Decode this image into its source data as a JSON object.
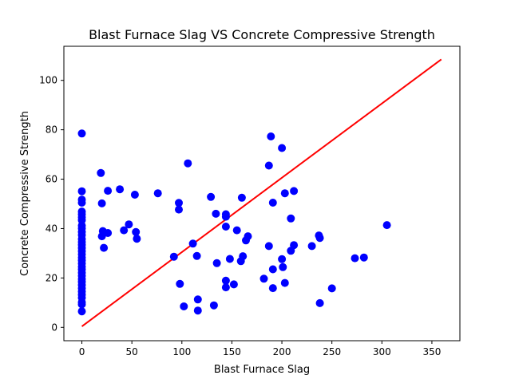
{
  "chart_data": {
    "type": "scatter",
    "title": "Blast Furnace Slag VS Concrete Compressive Strength",
    "xlabel": "Blast Furnace Slag",
    "ylabel": "Concrete Compressive Strength",
    "xlim": [
      -18,
      378
    ],
    "ylim": [
      -5.4,
      113.8
    ],
    "xticks": [
      0,
      50,
      100,
      150,
      200,
      250,
      300,
      350
    ],
    "yticks": [
      0,
      20,
      40,
      60,
      80,
      100
    ],
    "grid": false,
    "point_color": "#0000ff",
    "line_color": "#ff0000",
    "fit_line": {
      "x": [
        0,
        359.4
      ],
      "y": [
        0.4,
        108.5
      ]
    },
    "points": [
      [
        0,
        78.5
      ],
      [
        0,
        55.1
      ],
      [
        0,
        51.7
      ],
      [
        0,
        50.5
      ],
      [
        0,
        46.9
      ],
      [
        0,
        45.8
      ],
      [
        0,
        44.6
      ],
      [
        0,
        43.4
      ],
      [
        0,
        41.2
      ],
      [
        0,
        40.1
      ],
      [
        0,
        38.6
      ],
      [
        0,
        37.4
      ],
      [
        0,
        35.8
      ],
      [
        0,
        34.6
      ],
      [
        0,
        33.4
      ],
      [
        0,
        32.1
      ],
      [
        0,
        30.8
      ],
      [
        0,
        29.6
      ],
      [
        0,
        28.3
      ],
      [
        0,
        27.1
      ],
      [
        0,
        25.9
      ],
      [
        0,
        24.6
      ],
      [
        0,
        23.4
      ],
      [
        0,
        22.1
      ],
      [
        0,
        20.9
      ],
      [
        0,
        19.6
      ],
      [
        0,
        18.4
      ],
      [
        0,
        17.1
      ],
      [
        0,
        15.9
      ],
      [
        0,
        14.5
      ],
      [
        0,
        13.2
      ],
      [
        0,
        12.0
      ],
      [
        0,
        10.2
      ],
      [
        0,
        9.3
      ],
      [
        0,
        6.5
      ],
      [
        19,
        62.5
      ],
      [
        20,
        50.2
      ],
      [
        20,
        36.9
      ],
      [
        21,
        39.0
      ],
      [
        22,
        32.2
      ],
      [
        26,
        55.3
      ],
      [
        26,
        38.2
      ],
      [
        38,
        55.9
      ],
      [
        42,
        39.3
      ],
      [
        47,
        41.7
      ],
      [
        53,
        53.7
      ],
      [
        54,
        38.6
      ],
      [
        55,
        35.9
      ],
      [
        76,
        54.3
      ],
      [
        92,
        28.6
      ],
      [
        97,
        50.4
      ],
      [
        97,
        47.7
      ],
      [
        98,
        17.6
      ],
      [
        102,
        8.5
      ],
      [
        106,
        66.4
      ],
      [
        111,
        33.9
      ],
      [
        115,
        28.9
      ],
      [
        116,
        11.3
      ],
      [
        116,
        6.8
      ],
      [
        129,
        52.8
      ],
      [
        132,
        8.9
      ],
      [
        134,
        46.0
      ],
      [
        135,
        26.0
      ],
      [
        144,
        44.8
      ],
      [
        144,
        45.8
      ],
      [
        144,
        40.8
      ],
      [
        144,
        18.9
      ],
      [
        144,
        16.2
      ],
      [
        148,
        27.7
      ],
      [
        152,
        17.4
      ],
      [
        155,
        39.3
      ],
      [
        159,
        26.8
      ],
      [
        160,
        52.5
      ],
      [
        161,
        28.8
      ],
      [
        164,
        35.2
      ],
      [
        166,
        36.9
      ],
      [
        182,
        19.7
      ],
      [
        187,
        65.5
      ],
      [
        187,
        32.9
      ],
      [
        189,
        77.3
      ],
      [
        191,
        50.5
      ],
      [
        191,
        23.5
      ],
      [
        191,
        15.9
      ],
      [
        200,
        72.6
      ],
      [
        200,
        27.6
      ],
      [
        201,
        24.4
      ],
      [
        203,
        54.3
      ],
      [
        203,
        18.0
      ],
      [
        209,
        44.1
      ],
      [
        209,
        31.0
      ],
      [
        212,
        55.2
      ],
      [
        212,
        33.3
      ],
      [
        230,
        32.9
      ],
      [
        237,
        37.2
      ],
      [
        238,
        36.2
      ],
      [
        238,
        9.8
      ],
      [
        250,
        15.8
      ],
      [
        273,
        28.0
      ],
      [
        282,
        28.3
      ],
      [
        305,
        41.4
      ]
    ]
  }
}
